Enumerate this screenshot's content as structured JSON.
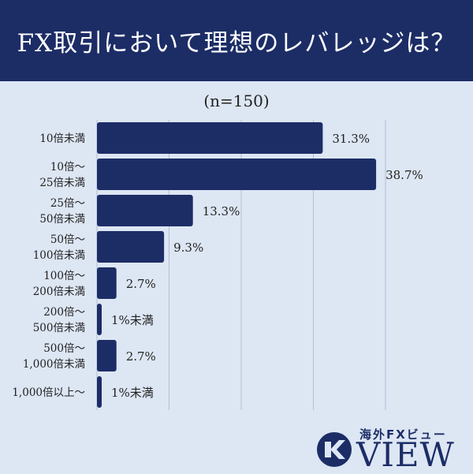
{
  "header": {
    "title": "FX取引において理想のレバレッジは？"
  },
  "chart_data": {
    "type": "bar",
    "orientation": "horizontal",
    "title": "FX取引において理想のレバレッジは？",
    "subtitle": "(n=150)",
    "categories": [
      [
        "10倍未満"
      ],
      [
        "10倍～",
        "25倍未満"
      ],
      [
        "25倍～",
        "50倍未満"
      ],
      [
        "50倍～",
        "100倍未満"
      ],
      [
        "100倍～",
        "200倍未満"
      ],
      [
        "200倍～",
        "500倍未満"
      ],
      [
        "500倍～",
        "1,000倍未満"
      ],
      [
        "1,000倍以上～"
      ]
    ],
    "values": [
      31.3,
      38.7,
      13.3,
      9.3,
      2.7,
      0.5,
      2.7,
      0.5
    ],
    "data_labels": [
      "31.3%",
      "38.7%",
      "13.3%",
      "9.3%",
      "2.7%",
      "1%未満",
      "2.7%",
      "1%未満"
    ],
    "xlim": [
      0,
      40
    ],
    "grid": true,
    "bar_color": "#1c2d66",
    "gridline_color": "#b4bfd6"
  },
  "logo": {
    "sub": "海外FXビュー",
    "main": "VIEW",
    "color": "#1c2d66"
  }
}
